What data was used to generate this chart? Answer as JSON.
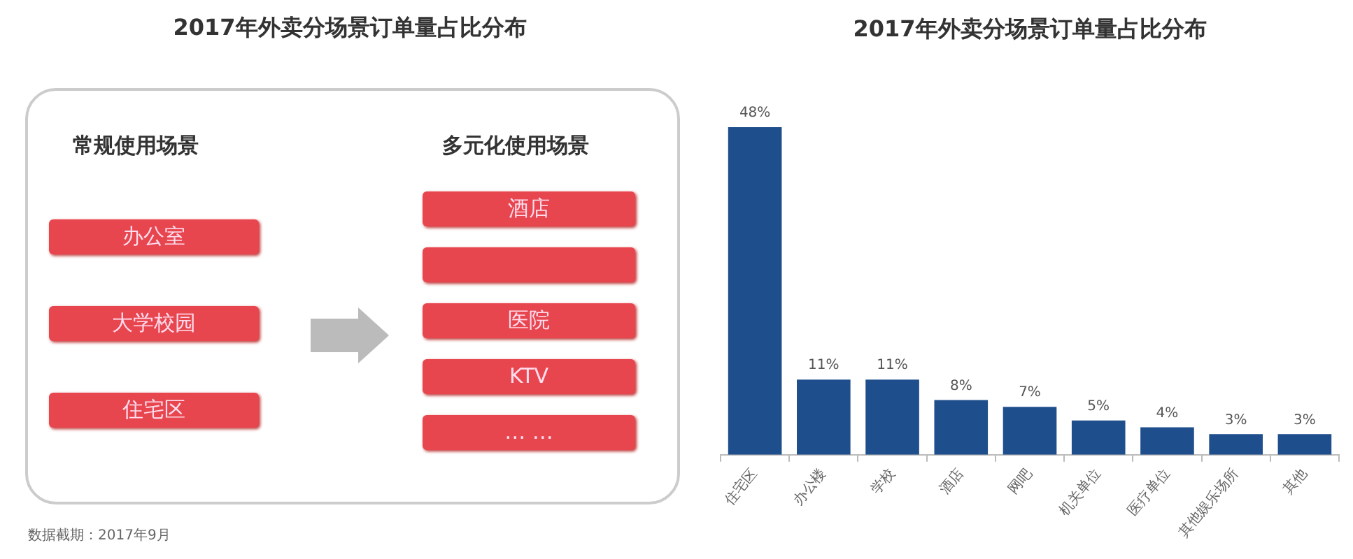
{
  "chart_data": [
    {
      "type": "other",
      "title": "2017年外卖分场景订单量占比分布",
      "annotations": [
        "常规使用场景",
        "多元化使用场景",
        "办公室",
        "大学校园",
        "住宅区",
        "酒店",
        "医院",
        "KTV",
        "… …",
        "数据截期：2017年9月"
      ]
    },
    {
      "type": "bar",
      "title": "2017年外卖分场景订单量占比分布",
      "categories": [
        "住宅区",
        "办公楼",
        "学校",
        "酒店",
        "网吧",
        "机关单位",
        "医疗单位",
        "其他娱乐场所",
        "其他"
      ],
      "values": [
        48,
        11,
        11,
        8,
        7,
        5,
        4,
        3,
        3
      ],
      "value_labels": [
        "48%",
        "11%",
        "11%",
        "8%",
        "7%",
        "5%",
        "4%",
        "3%",
        "3%"
      ],
      "color": "#1f4e8c",
      "grid": false,
      "legend": false,
      "tick_labels": "x"
    }
  ]
}
